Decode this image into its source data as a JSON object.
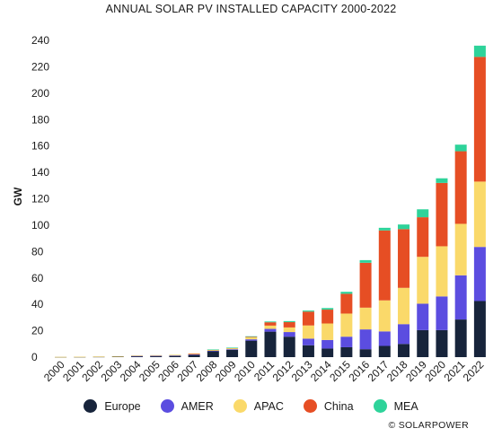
{
  "chart_data": {
    "type": "bar",
    "stacked": true,
    "title": "ANNUAL SOLAR PV INSTALLED CAPACITY 2000-2022",
    "xlabel": "",
    "ylabel": "GW",
    "ylim": [
      0,
      240
    ],
    "yticks": [
      0,
      20,
      40,
      60,
      80,
      100,
      120,
      140,
      160,
      180,
      200,
      220,
      240
    ],
    "grid": false,
    "legend_position": "bottom",
    "categories": [
      "2000",
      "2001",
      "2002",
      "2003",
      "2004",
      "2005",
      "2006",
      "2007",
      "2008",
      "2009",
      "2010",
      "2011",
      "2012",
      "2013",
      "2014",
      "2015",
      "2016",
      "2017",
      "2018",
      "2019",
      "2020",
      "2021",
      "2022"
    ],
    "series": [
      {
        "name": "Europe",
        "color": "#17243b",
        "values": [
          0.1,
          0.2,
          0.3,
          0.4,
          0.8,
          0.9,
          1.1,
          1.8,
          4.5,
          5.5,
          12.5,
          19.3,
          15.5,
          9.0,
          6.5,
          7.5,
          6.0,
          8.5,
          10.0,
          20.5,
          20.5,
          28.5,
          42.5
        ]
      },
      {
        "name": "AMER",
        "color": "#5b4de0",
        "values": [
          0.0,
          0.0,
          0.0,
          0.0,
          0.1,
          0.1,
          0.1,
          0.2,
          0.3,
          0.5,
          1.0,
          2.1,
          3.5,
          5.0,
          6.5,
          8.0,
          15.0,
          11.0,
          15.0,
          20.0,
          25.5,
          33.5,
          41.0
        ]
      },
      {
        "name": "APAC",
        "color": "#fad96a",
        "values": [
          0.1,
          0.1,
          0.2,
          0.3,
          0.4,
          0.5,
          0.6,
          0.7,
          0.8,
          0.9,
          1.5,
          2.5,
          3.5,
          10.0,
          12.5,
          17.5,
          16.5,
          23.5,
          27.5,
          35.5,
          38.0,
          39.0,
          49.5
        ]
      },
      {
        "name": "China",
        "color": "#e64e24",
        "values": [
          0.0,
          0.0,
          0.0,
          0.0,
          0.0,
          0.0,
          0.0,
          0.1,
          0.1,
          0.2,
          0.5,
          2.5,
          4.0,
          10.5,
          10.5,
          15.0,
          34.0,
          53.0,
          44.5,
          30.0,
          48.0,
          55.0,
          94.5
        ]
      },
      {
        "name": "MEA",
        "color": "#2ed39a",
        "values": [
          0.0,
          0.0,
          0.0,
          0.0,
          0.0,
          0.0,
          0.0,
          0.0,
          0.1,
          0.1,
          0.3,
          0.6,
          0.8,
          0.8,
          1.2,
          1.5,
          2.0,
          2.0,
          3.5,
          6.0,
          3.5,
          5.0,
          8.5
        ]
      }
    ]
  },
  "credit": "© SOLARPOWER"
}
